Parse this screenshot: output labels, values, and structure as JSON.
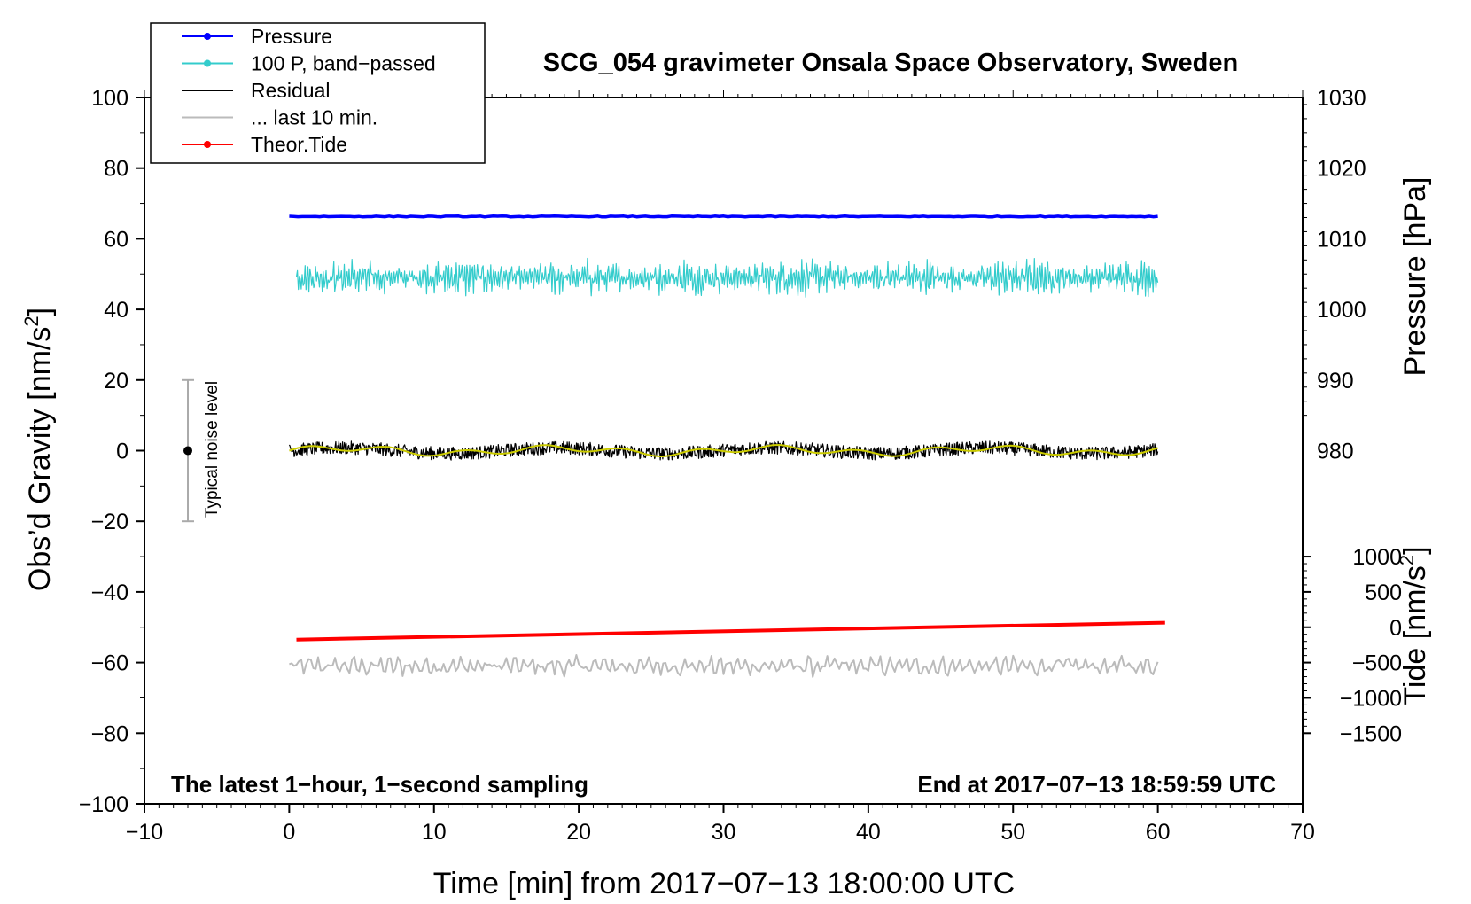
{
  "chart_data": {
    "type": "line",
    "title": "SCG_054 gravimeter Onsala Space Observatory, Sweden",
    "xlabel": "Time [min] from 2017−07−13 18:00:00 UTC",
    "ylabel_left": "Obs’d Gravity [nm/s",
    "ylabel_left_sup": "2",
    "ylabel_left_end": "]",
    "ylabel_right_pressure": "Pressure [hPa]",
    "ylabel_right_tide": "Tide [nm/s",
    "ylabel_right_tide_sup": "2",
    "ylabel_right_tide_end": "]",
    "note_left": "The latest 1−hour, 1−second sampling",
    "note_right": "End at 2017−07−13 18:59:59 UTC",
    "noise_label": "Typical noise level",
    "noise_center": 0,
    "noise_half_range": 20,
    "noise_x": -7,
    "xlim": [
      -10,
      70
    ],
    "ylim": [
      -100,
      100
    ],
    "x_ticks": [
      -10,
      0,
      10,
      20,
      30,
      40,
      50,
      60,
      70
    ],
    "x_tick_labels": [
      "−10",
      "0",
      "10",
      "20",
      "30",
      "40",
      "50",
      "60",
      "70"
    ],
    "y_ticks": [
      -100,
      -80,
      -60,
      -40,
      -20,
      0,
      20,
      40,
      60,
      80,
      100
    ],
    "y_tick_labels": [
      "−100",
      "−80",
      "−60",
      "−40",
      "−20",
      "0",
      "20",
      "40",
      "60",
      "80",
      "100"
    ],
    "pressure_axis": {
      "ticks": [
        980,
        990,
        1000,
        1010,
        1020,
        1030
      ],
      "tick_labels": [
        "980",
        "990",
        "1000",
        "1010",
        "1020",
        "1030"
      ],
      "ref_value": 1000,
      "ref_gravity": 40,
      "gravity_per_hpa": 2
    },
    "tide_axis": {
      "ticks": [
        -1500,
        -1000,
        -500,
        0,
        500,
        1000
      ],
      "tick_labels": [
        "−1500",
        "−1000",
        "−500",
        "0",
        "500",
        "1000"
      ],
      "ref_value": 0,
      "ref_gravity": -50,
      "gravity_per_unit": 0.02
    },
    "legend": [
      {
        "name": "Pressure",
        "color": "#0000ff",
        "marker": true
      },
      {
        "name": "100 P, band−passed",
        "color": "#33cccc",
        "marker": true
      },
      {
        "name": "Residual",
        "color": "#000000",
        "marker": false
      },
      {
        "name": "... last 10 min.",
        "color": "#bbbbbb",
        "marker": false
      },
      {
        "name": "Theor.Tide",
        "color": "#ff0000",
        "marker": true
      }
    ],
    "series": [
      {
        "name": "Pressure",
        "color": "#0000ff",
        "x_range": [
          0,
          60
        ],
        "level_gravity": 66.3,
        "level_hpa": 1013.2
      },
      {
        "name": "100 P, band−passed",
        "color": "#33cccc",
        "x_range": [
          0.5,
          60
        ],
        "center": 49,
        "amplitude": 4.5
      },
      {
        "name": "Residual",
        "color": "#000000",
        "x_range": [
          0,
          60
        ],
        "center": 0,
        "amplitude": 2.5
      },
      {
        "name": "Residual smoothed",
        "color": "#cccc00",
        "x_range": [
          0,
          60
        ],
        "center": 0,
        "amplitude": 1.2
      },
      {
        "name": "... last 10 min.",
        "color": "#bbbbbb",
        "x_range": [
          0,
          60
        ],
        "center": -61,
        "amplitude": 2.5
      },
      {
        "name": "Theor.Tide",
        "color": "#ff0000",
        "x": [
          0.5,
          60.5
        ],
        "y_tide": [
          -175,
          65
        ]
      }
    ],
    "grid": false,
    "legend_position": "top-left"
  }
}
